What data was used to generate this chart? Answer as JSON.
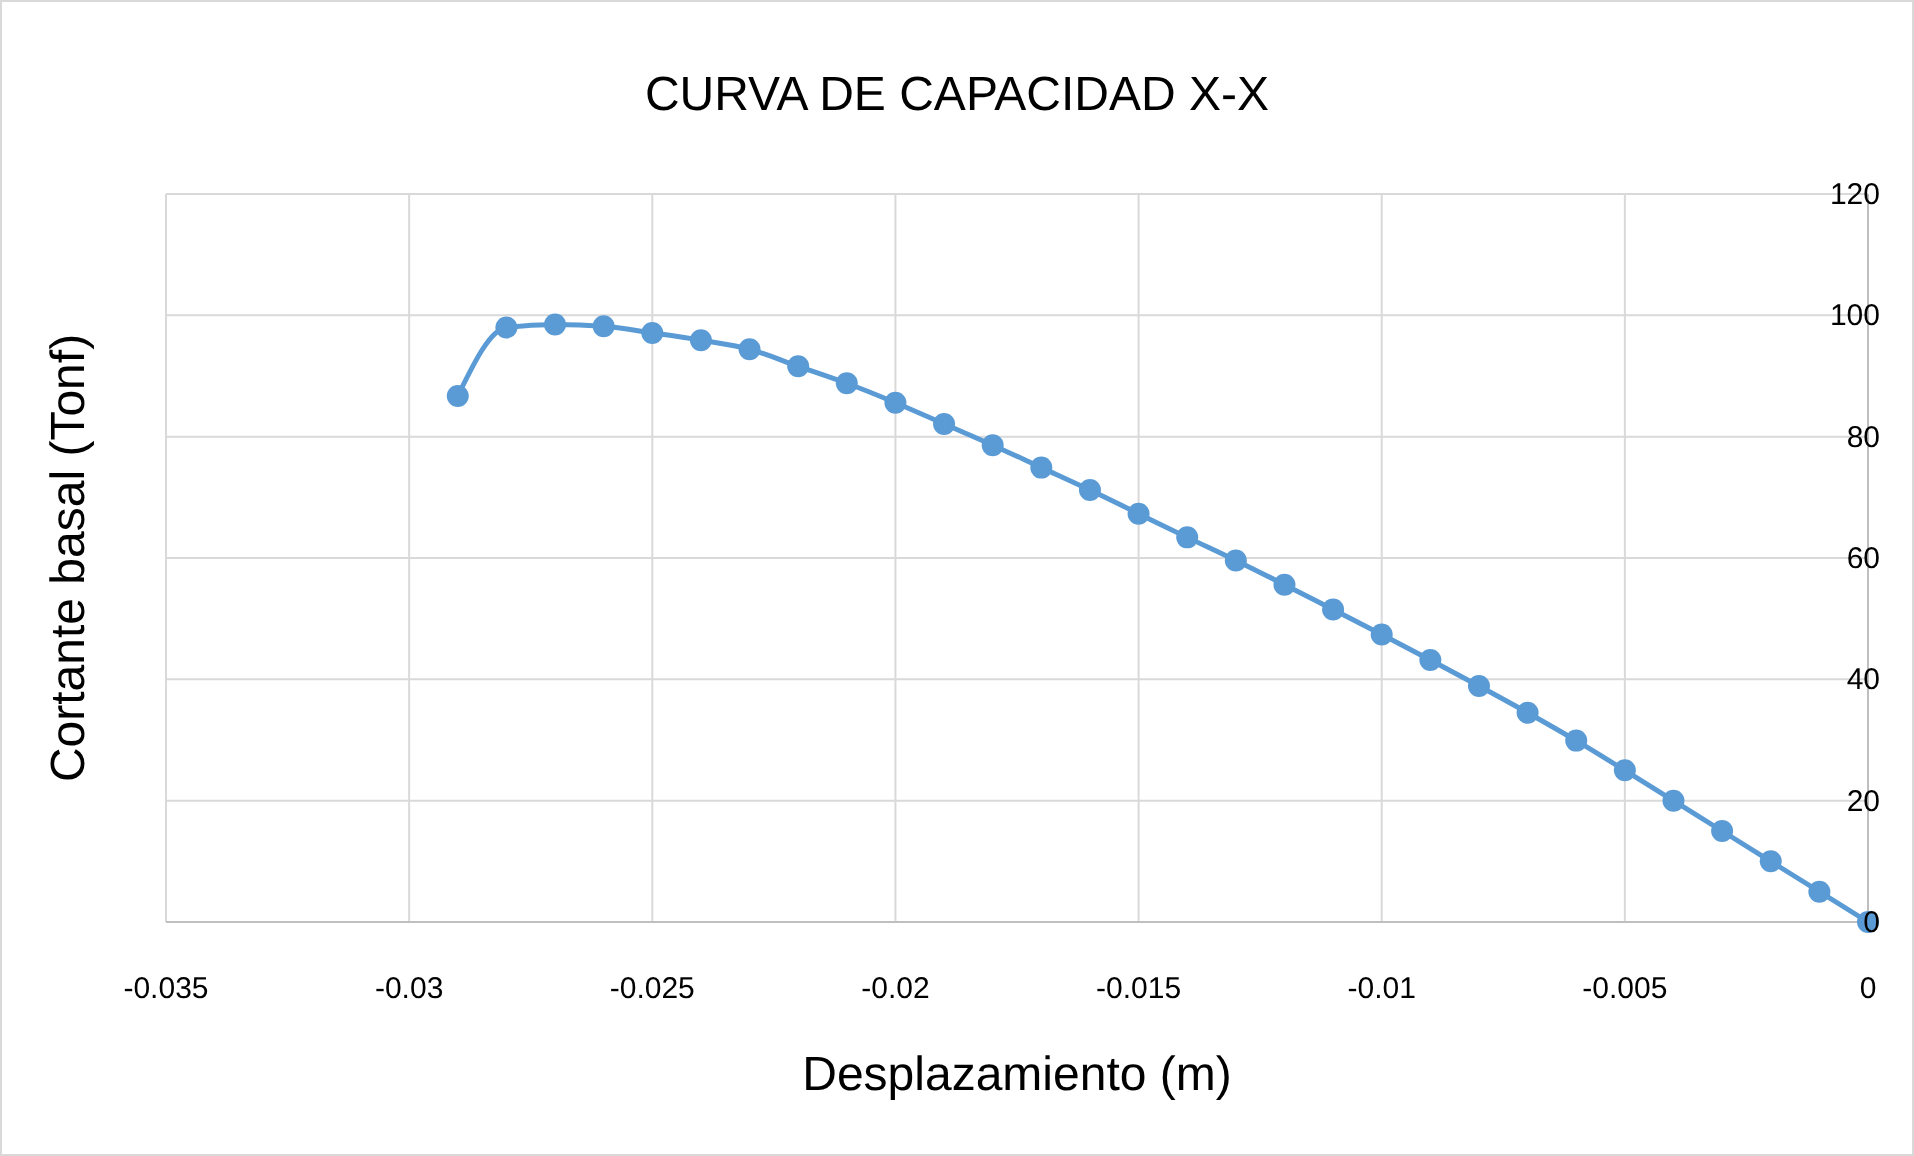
{
  "chart_data": {
    "type": "line",
    "title": "CURVA DE CAPACIDAD X-X",
    "xlabel": "Desplazamiento (m)",
    "ylabel": "Cortante basal (Tonf)",
    "x": [
      -0.029,
      -0.028,
      -0.027,
      -0.026,
      -0.025,
      -0.024,
      -0.023,
      -0.022,
      -0.021,
      -0.02,
      -0.019,
      -0.018,
      -0.017,
      -0.016,
      -0.015,
      -0.014,
      -0.013,
      -0.012,
      -0.011,
      -0.01,
      -0.009,
      -0.008,
      -0.007,
      -0.006,
      -0.005,
      -0.004,
      -0.003,
      -0.002,
      -0.001,
      0
    ],
    "series": [
      {
        "color": "#5b9bd5",
        "values": [
          86.7,
          98,
          98.5,
          98.2,
          97.1,
          95.9,
          94.4,
          91.6,
          88.8,
          85.6,
          82.1,
          78.6,
          74.9,
          71.2,
          67.3,
          63.4,
          59.6,
          55.6,
          51.5,
          47.4,
          43.2,
          38.9,
          34.5,
          29.9,
          25,
          20,
          15,
          10,
          5,
          0
        ]
      }
    ],
    "xlim": [
      -0.035,
      0
    ],
    "xticks": [
      -0.035,
      -0.03,
      -0.025,
      -0.02,
      -0.015,
      -0.01,
      -0.005,
      0
    ],
    "ylim": [
      0,
      120
    ],
    "yticks": [
      0,
      20,
      40,
      60,
      80,
      100,
      120
    ],
    "grid": true,
    "marker": "circle",
    "line_style": "solid"
  }
}
